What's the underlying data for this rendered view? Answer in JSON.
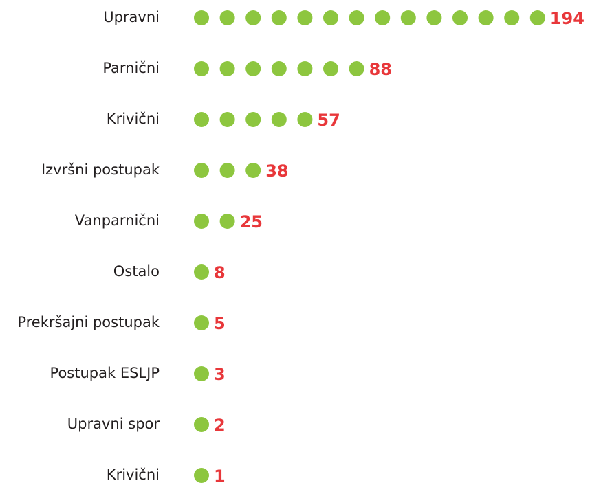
{
  "chart_data": {
    "type": "dot",
    "categories": [
      "Upravni",
      "Parnični",
      "Krivični",
      "Izvršni postupak",
      "Vanparnični",
      "Ostalo",
      "Prekršajni postupak",
      "Postupak ESLJP",
      "Upravni spor",
      "Krivični"
    ],
    "values": [
      194,
      88,
      57,
      38,
      25,
      8,
      5,
      3,
      2,
      1
    ],
    "color": "#8dc63f",
    "label_color": "#e8373a"
  }
}
